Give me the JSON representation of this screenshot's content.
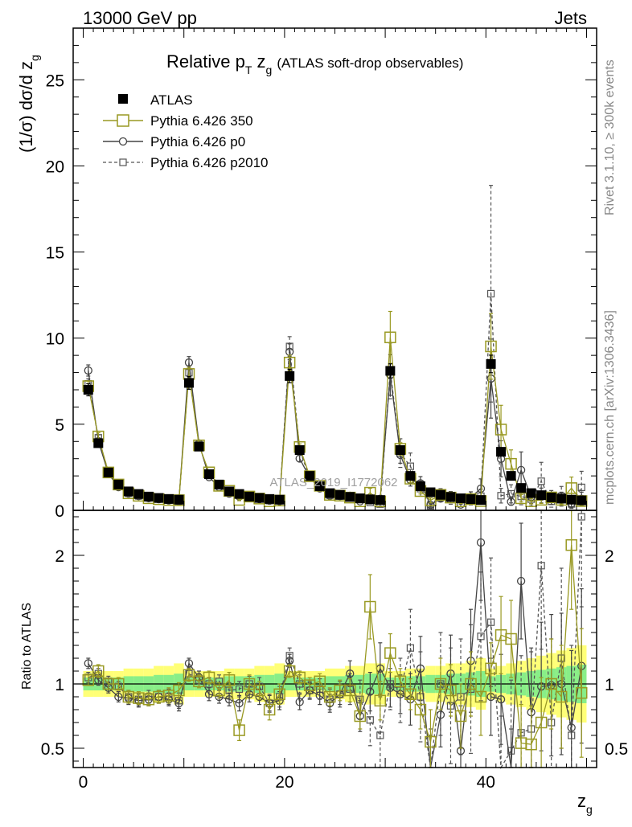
{
  "header": {
    "left": "13000 GeV pp",
    "right": "Jets"
  },
  "side": {
    "rivet": "Rivet 3.1.10, ≥ 300k events",
    "mcplots": "mcplots.cern.ch [arXiv:1306.3436]"
  },
  "colors": {
    "atlas": "#000000",
    "p350": "#999922",
    "p0": "#444444",
    "p2010": "#555555",
    "band_outer": "#ffff77",
    "band_inner": "#88ee88"
  },
  "chart_data": {
    "type": "scatter",
    "title_main": "Relative p",
    "title_sub": "T",
    "title_zg": " z",
    "title_zg_sub": "g",
    "title_tail": "(ATLAS soft-drop observables)",
    "watermark": "ATLAS_2019_I1772062",
    "ylabel_pre": "(1/σ) dσ/d z",
    "ylabel_sub": "g",
    "ratio_ylabel": "Ratio to ATLAS",
    "xlabel": "z",
    "xlabel_sub": "g",
    "xlim": [
      -1,
      51
    ],
    "ylim_top": [
      0,
      28
    ],
    "ylim_ratio": [
      0.35,
      2.35
    ],
    "xticks": [
      "0",
      "20",
      "40"
    ],
    "yticks_top": [
      "0",
      "5",
      "10",
      "15",
      "20",
      "25"
    ],
    "yticks_ratio": [
      "0.5",
      "1",
      "2"
    ],
    "legend": [
      "ATLAS",
      "Pythia 6.426 350",
      "Pythia 6.426 p0",
      "Pythia 6.426 p2010"
    ],
    "series": [
      {
        "name": "ATLAS",
        "values": [
          7.0,
          3.9,
          2.2,
          1.5,
          1.1,
          0.95,
          0.8,
          0.72,
          0.66,
          0.62,
          7.4,
          3.7,
          2.1,
          1.5,
          1.1,
          0.95,
          0.8,
          0.72,
          0.66,
          0.62,
          7.8,
          3.5,
          2.0,
          1.4,
          1.0,
          0.9,
          0.78,
          0.7,
          0.64,
          0.6,
          8.1,
          3.5,
          2.0,
          1.4,
          1.05,
          0.9,
          0.78,
          0.7,
          0.65,
          0.6,
          8.5,
          3.4,
          2.0,
          1.3,
          1.0,
          0.88,
          0.75,
          0.68,
          0.62,
          0.58
        ],
        "rel_err": [
          0.05,
          0.05,
          0.05,
          0.05,
          0.06,
          0.06,
          0.06,
          0.07,
          0.07,
          0.08,
          0.05,
          0.05,
          0.05,
          0.05,
          0.06,
          0.06,
          0.06,
          0.07,
          0.07,
          0.08,
          0.05,
          0.05,
          0.05,
          0.05,
          0.06,
          0.06,
          0.07,
          0.07,
          0.08,
          0.08,
          0.05,
          0.05,
          0.06,
          0.06,
          0.07,
          0.07,
          0.08,
          0.08,
          0.09,
          0.1,
          0.06,
          0.07,
          0.08,
          0.09,
          0.1,
          0.11,
          0.12,
          0.13,
          0.14,
          0.15
        ]
      },
      {
        "name": "Pythia 6.426 350",
        "ratio": [
          1.03,
          1.1,
          1.0,
          1.0,
          0.9,
          0.89,
          0.88,
          0.9,
          0.91,
          0.95,
          1.07,
          1.02,
          1.05,
          0.95,
          1.03,
          0.64,
          1.0,
          0.95,
          0.8,
          0.92,
          1.1,
          1.05,
          0.99,
          1.02,
          0.9,
          0.95,
          0.95,
          0.75,
          1.6,
          0.87,
          1.24,
          1.02,
          0.92,
          0.8,
          0.55,
          1.0,
          0.95,
          0.75,
          1.0,
          0.9,
          1.12,
          1.38,
          1.35,
          0.54,
          0.53,
          0.7,
          1.0,
          0.9,
          2.08,
          0.93
        ],
        "err": [
          0.04,
          0.05,
          0.04,
          0.05,
          0.05,
          0.05,
          0.05,
          0.05,
          0.06,
          0.06,
          0.05,
          0.05,
          0.05,
          0.06,
          0.06,
          0.08,
          0.07,
          0.07,
          0.08,
          0.08,
          0.05,
          0.05,
          0.06,
          0.06,
          0.07,
          0.08,
          0.09,
          0.1,
          0.25,
          0.15,
          0.15,
          0.1,
          0.12,
          0.15,
          0.25,
          0.2,
          0.2,
          0.25,
          0.25,
          0.3,
          0.2,
          0.3,
          0.3,
          0.3,
          0.3,
          0.35,
          0.35,
          0.4,
          0.5,
          0.5
        ]
      },
      {
        "name": "Pythia 6.426 p0",
        "ratio": [
          1.16,
          1.03,
          0.97,
          0.9,
          0.89,
          0.87,
          0.88,
          0.9,
          0.88,
          0.85,
          1.16,
          1.05,
          0.92,
          0.9,
          0.88,
          0.85,
          0.92,
          0.9,
          0.85,
          0.87,
          1.18,
          0.86,
          0.95,
          0.91,
          0.85,
          0.92,
          1.08,
          0.75,
          0.94,
          1.12,
          0.97,
          0.92,
          0.88,
          1.12,
          0.3,
          0.76,
          1.08,
          0.48,
          1.18,
          2.1,
          0.9,
          0.88,
          0.25,
          1.8,
          0.78,
          0.98,
          0.99,
          1.0,
          0.66,
          1.14
        ],
        "err": [
          0.04,
          0.04,
          0.04,
          0.04,
          0.05,
          0.05,
          0.05,
          0.05,
          0.05,
          0.06,
          0.04,
          0.05,
          0.05,
          0.05,
          0.05,
          0.06,
          0.06,
          0.06,
          0.06,
          0.07,
          0.05,
          0.06,
          0.06,
          0.07,
          0.07,
          0.08,
          0.1,
          0.12,
          0.15,
          0.2,
          0.15,
          0.15,
          0.2,
          0.25,
          0.3,
          0.25,
          0.3,
          0.35,
          0.4,
          0.45,
          0.3,
          0.35,
          0.4,
          0.45,
          0.5,
          0.5,
          0.55,
          0.55,
          0.6,
          0.6
        ]
      },
      {
        "name": "Pythia 6.426 p2010",
        "ratio": [
          1.05,
          1.08,
          1.02,
          0.98,
          0.9,
          0.88,
          0.9,
          0.9,
          0.9,
          0.87,
          1.08,
          1.03,
          1.0,
          1.02,
          0.95,
          0.96,
          1.0,
          0.98,
          0.85,
          0.9,
          1.22,
          1.0,
          0.95,
          0.96,
          0.88,
          0.92,
          0.96,
          0.88,
          0.72,
          0.6,
          1.0,
          0.95,
          1.28,
          0.9,
          0.25,
          1.0,
          0.83,
          0.9,
          0.96,
          1.37,
          1.48,
          0.25,
          0.48,
          0.62,
          0.65,
          1.92,
          0.7,
          1.2,
          0.6,
          2.3
        ],
        "err": [
          0.04,
          0.04,
          0.04,
          0.04,
          0.05,
          0.05,
          0.05,
          0.05,
          0.06,
          0.06,
          0.05,
          0.05,
          0.05,
          0.05,
          0.06,
          0.06,
          0.06,
          0.07,
          0.07,
          0.08,
          0.06,
          0.07,
          0.07,
          0.08,
          0.08,
          0.1,
          0.12,
          0.15,
          0.2,
          0.3,
          0.2,
          0.25,
          0.3,
          0.35,
          0.4,
          0.4,
          0.45,
          0.45,
          0.5,
          0.5,
          0.5,
          0.5,
          0.55,
          0.6,
          0.6,
          0.65,
          0.65,
          0.7,
          0.7,
          0.7
        ]
      }
    ]
  }
}
